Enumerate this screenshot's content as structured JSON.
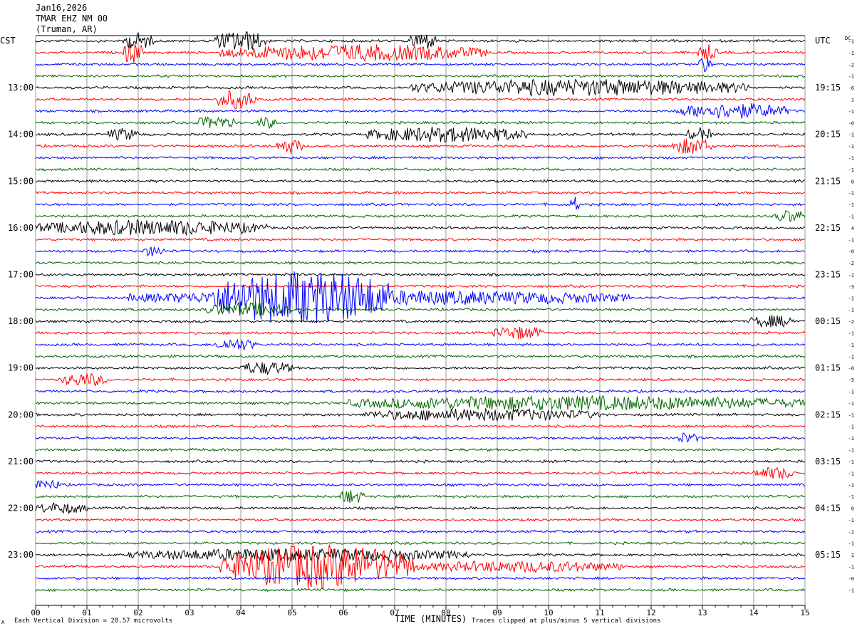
{
  "header": {
    "date": "Jan16,2026",
    "station": "TMAR EHZ NM 00",
    "location": "(Truman, AR)"
  },
  "left_tz": "CST",
  "right_tz": "UTC",
  "dc_label": "DC",
  "footer": {
    "vertical_division": "Each Vertical Division =   28.57 microvolts",
    "xlabel": "TIME (MINUTES)",
    "clip_note": "Traces clipped at plus/minus 5 vertical divisions",
    "corner_mark": "A"
  },
  "colors": {
    "trace_cycle": [
      "#000000",
      "#ff0000",
      "#0000ff",
      "#006400"
    ],
    "grid": "#808080"
  },
  "chart_data": {
    "type": "line",
    "xlabel": "TIME (MINUTES)",
    "xlim": [
      0,
      15
    ],
    "x_tick_labels": [
      "00",
      "01",
      "02",
      "03",
      "04",
      "05",
      "06",
      "07",
      "08",
      "09",
      "10",
      "11",
      "12",
      "13",
      "14",
      "15"
    ],
    "trace_count": 48,
    "minutes_per_trace": 15,
    "left_hour_labels": [
      {
        "trace": 4,
        "label": "13:00"
      },
      {
        "trace": 8,
        "label": "14:00"
      },
      {
        "trace": 12,
        "label": "15:00"
      },
      {
        "trace": 16,
        "label": "16:00"
      },
      {
        "trace": 20,
        "label": "17:00"
      },
      {
        "trace": 24,
        "label": "18:00"
      },
      {
        "trace": 28,
        "label": "19:00"
      },
      {
        "trace": 32,
        "label": "20:00"
      },
      {
        "trace": 36,
        "label": "21:00"
      },
      {
        "trace": 40,
        "label": "22:00"
      },
      {
        "trace": 44,
        "label": "23:00"
      }
    ],
    "right_hour_labels": [
      {
        "trace": 4,
        "label": "19:15"
      },
      {
        "trace": 8,
        "label": "20:15"
      },
      {
        "trace": 12,
        "label": "21:15"
      },
      {
        "trace": 16,
        "label": "22:15"
      },
      {
        "trace": 20,
        "label": "23:15"
      },
      {
        "trace": 24,
        "label": "00:15"
      },
      {
        "trace": 28,
        "label": "01:15"
      },
      {
        "trace": 32,
        "label": "02:15"
      },
      {
        "trace": 36,
        "label": "03:15"
      },
      {
        "trace": 40,
        "label": "04:15"
      },
      {
        "trace": 44,
        "label": "05:15"
      }
    ],
    "dc_offsets": [
      "-1",
      "-1",
      "-2",
      "-1",
      "-6",
      "1",
      "-1",
      "-0",
      "-1",
      "-1",
      "-1",
      "-1",
      "0",
      "-1",
      "-1",
      "-1",
      "4",
      "-1",
      "-0",
      "-2",
      "-1",
      "-3",
      "-1",
      "-1",
      "-2",
      "-1",
      "-1",
      "-1",
      "-0",
      "-5",
      "-1",
      "-1",
      "-1",
      "-1",
      "-1",
      "-1",
      "-1",
      "-1",
      "-1",
      "-1",
      "0",
      "-1",
      "-1",
      "-1",
      "1",
      "-1",
      "-0",
      "-1"
    ],
    "events": [
      {
        "trace": 0,
        "start": 1.7,
        "end": 2.3,
        "amp": 1.4
      },
      {
        "trace": 0,
        "start": 3.5,
        "end": 4.5,
        "amp": 1.8
      },
      {
        "trace": 0,
        "start": 7.3,
        "end": 7.8,
        "amp": 1.6
      },
      {
        "trace": 1,
        "start": 1.7,
        "end": 2.1,
        "amp": 2.0
      },
      {
        "trace": 1,
        "start": 3.6,
        "end": 8.8,
        "amp": 1.4
      },
      {
        "trace": 1,
        "start": 12.9,
        "end": 13.3,
        "amp": 1.3
      },
      {
        "trace": 2,
        "start": 12.9,
        "end": 13.2,
        "amp": 1.2
      },
      {
        "trace": 4,
        "start": 7.3,
        "end": 13.9,
        "amp": 1.4
      },
      {
        "trace": 5,
        "start": 3.5,
        "end": 4.3,
        "amp": 1.6
      },
      {
        "trace": 6,
        "start": 12.5,
        "end": 14.7,
        "amp": 1.3
      },
      {
        "trace": 7,
        "start": 3.1,
        "end": 3.9,
        "amp": 1.0
      },
      {
        "trace": 7,
        "start": 4.3,
        "end": 4.7,
        "amp": 0.9
      },
      {
        "trace": 8,
        "start": 1.4,
        "end": 2.0,
        "amp": 1.0
      },
      {
        "trace": 8,
        "start": 6.4,
        "end": 9.6,
        "amp": 1.3
      },
      {
        "trace": 8,
        "start": 12.7,
        "end": 13.2,
        "amp": 1.1
      },
      {
        "trace": 9,
        "start": 4.7,
        "end": 5.2,
        "amp": 1.3
      },
      {
        "trace": 9,
        "start": 12.4,
        "end": 13.2,
        "amp": 1.4
      },
      {
        "trace": 14,
        "start": 10.4,
        "end": 10.6,
        "amp": 1.3
      },
      {
        "trace": 15,
        "start": 14.4,
        "end": 15.0,
        "amp": 1.0
      },
      {
        "trace": 16,
        "start": 0.0,
        "end": 4.5,
        "amp": 1.3
      },
      {
        "trace": 18,
        "start": 2.1,
        "end": 2.5,
        "amp": 0.8
      },
      {
        "trace": 22,
        "start": 1.8,
        "end": 11.6,
        "amp": 1.2
      },
      {
        "trace": 22,
        "start": 3.4,
        "end": 6.9,
        "amp": 3.8
      },
      {
        "trace": 23,
        "start": 3.3,
        "end": 5.0,
        "amp": 1.1
      },
      {
        "trace": 24,
        "start": 13.9,
        "end": 14.8,
        "amp": 1.0
      },
      {
        "trace": 25,
        "start": 8.9,
        "end": 9.9,
        "amp": 1.1
      },
      {
        "trace": 26,
        "start": 3.5,
        "end": 4.3,
        "amp": 1.0
      },
      {
        "trace": 28,
        "start": 4.0,
        "end": 5.0,
        "amp": 1.1
      },
      {
        "trace": 29,
        "start": 0.5,
        "end": 1.4,
        "amp": 1.1
      },
      {
        "trace": 31,
        "start": 6.1,
        "end": 15.0,
        "amp": 1.2
      },
      {
        "trace": 32,
        "start": 6.4,
        "end": 11.0,
        "amp": 1.0
      },
      {
        "trace": 34,
        "start": 12.5,
        "end": 12.9,
        "amp": 0.9
      },
      {
        "trace": 37,
        "start": 14.0,
        "end": 14.8,
        "amp": 1.0
      },
      {
        "trace": 38,
        "start": 0.0,
        "end": 0.5,
        "amp": 0.8
      },
      {
        "trace": 39,
        "start": 5.9,
        "end": 6.4,
        "amp": 1.2
      },
      {
        "trace": 40,
        "start": 0.0,
        "end": 1.0,
        "amp": 0.9
      },
      {
        "trace": 44,
        "start": 1.8,
        "end": 8.5,
        "amp": 1.0
      },
      {
        "trace": 45,
        "start": 3.6,
        "end": 7.4,
        "amp": 4.0
      },
      {
        "trace": 45,
        "start": 7.4,
        "end": 11.5,
        "amp": 0.9
      }
    ]
  }
}
